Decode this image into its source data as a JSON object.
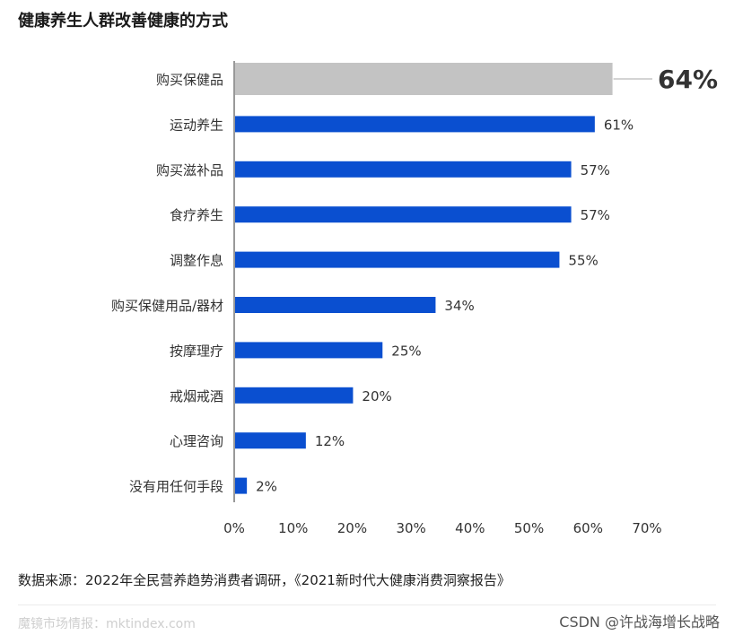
{
  "title": "健康养生人群改善健康的方式",
  "source": "数据来源：2022年全民营养趋势消费者调研，《2021新时代大健康消费洞察报告》",
  "footer_left": "魔镜市场情报：mktindex.com",
  "footer_right": "CSDN @许战海增长战略",
  "colors": {
    "highlight": "#c3c3c3",
    "bar": "#0a4fd0",
    "axis": "#333333"
  },
  "chart_data": {
    "type": "bar",
    "orientation": "horizontal",
    "title": "健康养生人群改善健康的方式",
    "xlabel": "",
    "ylabel": "",
    "xlim": [
      0,
      70
    ],
    "xticks": [
      0,
      10,
      20,
      30,
      40,
      50,
      60,
      70
    ],
    "xtick_labels": [
      "0%",
      "10%",
      "20%",
      "30%",
      "40%",
      "50%",
      "60%",
      "70%"
    ],
    "grid": false,
    "categories": [
      "购买保健品",
      "运动养生",
      "购买滋补品",
      "食疗养生",
      "调整作息",
      "购买保健用品/器材",
      "按摩理疗",
      "戒烟戒酒",
      "心理咨询",
      "没有用任何手段"
    ],
    "values": [
      64,
      61,
      57,
      57,
      55,
      34,
      25,
      20,
      12,
      2
    ],
    "labels": [
      "64%",
      "61%",
      "57%",
      "57%",
      "55%",
      "34%",
      "25%",
      "20%",
      "12%",
      "2%"
    ],
    "highlighted_index": 0
  }
}
